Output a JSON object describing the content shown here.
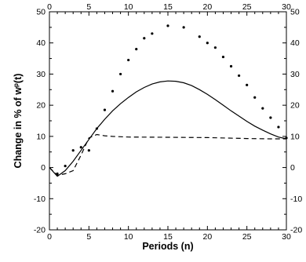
{
  "chart_data": {
    "type": "line",
    "title": "",
    "xlabel": "Periods (n)",
    "ylabel": "Change in % of w",
    "ylabel_superscript": "p",
    "ylabel_suffix": "(t)",
    "xlim": [
      0,
      30
    ],
    "ylim": [
      -20,
      50
    ],
    "x_ticks": [
      0,
      5,
      10,
      15,
      20,
      25,
      30
    ],
    "y_ticks": [
      -20,
      -10,
      0,
      10,
      20,
      30,
      40,
      50
    ],
    "grid": false,
    "legend": "none",
    "series": [
      {
        "style": "solid",
        "points": [
          [
            0,
            0
          ],
          [
            1,
            -2.8
          ],
          [
            2,
            -1
          ],
          [
            3,
            2
          ],
          [
            4,
            5.5
          ],
          [
            5,
            9
          ],
          [
            6,
            12.5
          ],
          [
            7,
            15.5
          ],
          [
            8,
            18.2
          ],
          [
            9,
            20.5
          ],
          [
            10,
            22.5
          ],
          [
            11,
            24.3
          ],
          [
            12,
            25.7
          ],
          [
            13,
            26.8
          ],
          [
            14,
            27.5
          ],
          [
            15,
            27.8
          ],
          [
            16,
            27.7
          ],
          [
            17,
            27.2
          ],
          [
            18,
            26.3
          ],
          [
            19,
            25
          ],
          [
            20,
            23.5
          ],
          [
            21,
            21.8
          ],
          [
            22,
            20
          ],
          [
            23,
            18.2
          ],
          [
            24,
            16.5
          ],
          [
            25,
            14.8
          ],
          [
            26,
            13.3
          ],
          [
            27,
            12
          ],
          [
            28,
            10.8
          ],
          [
            29,
            9.8
          ],
          [
            30,
            9.2
          ]
        ]
      },
      {
        "style": "dashed",
        "points": [
          [
            0,
            0
          ],
          [
            1,
            -2.5
          ],
          [
            2,
            -2
          ],
          [
            3,
            -1
          ],
          [
            4,
            4
          ],
          [
            5,
            9.5
          ],
          [
            6,
            10.6
          ],
          [
            7,
            10.2
          ],
          [
            8,
            10
          ],
          [
            10,
            9.8
          ],
          [
            15,
            9.7
          ],
          [
            20,
            9.6
          ],
          [
            25,
            9.3
          ],
          [
            28,
            9.2
          ],
          [
            30,
            9.2
          ]
        ]
      },
      {
        "style": "dots",
        "points": [
          [
            1,
            -2
          ],
          [
            2,
            0.5
          ],
          [
            3,
            5.5
          ],
          [
            4,
            6.5
          ],
          [
            5,
            5.5
          ],
          [
            6,
            12.5
          ],
          [
            7,
            18.5
          ],
          [
            8,
            24.5
          ],
          [
            9,
            30
          ],
          [
            10,
            34.5
          ],
          [
            11,
            38
          ],
          [
            12,
            41.5
          ],
          [
            13,
            43
          ],
          [
            15,
            45.5
          ],
          [
            17,
            45
          ],
          [
            19,
            42
          ],
          [
            20,
            40
          ],
          [
            21,
            38.5
          ],
          [
            22,
            35.5
          ],
          [
            23,
            32.5
          ],
          [
            24,
            29.5
          ],
          [
            25,
            26.5
          ],
          [
            26,
            22.5
          ],
          [
            27,
            19
          ],
          [
            28,
            16
          ],
          [
            29,
            13
          ],
          [
            30,
            9.5
          ]
        ]
      }
    ]
  }
}
